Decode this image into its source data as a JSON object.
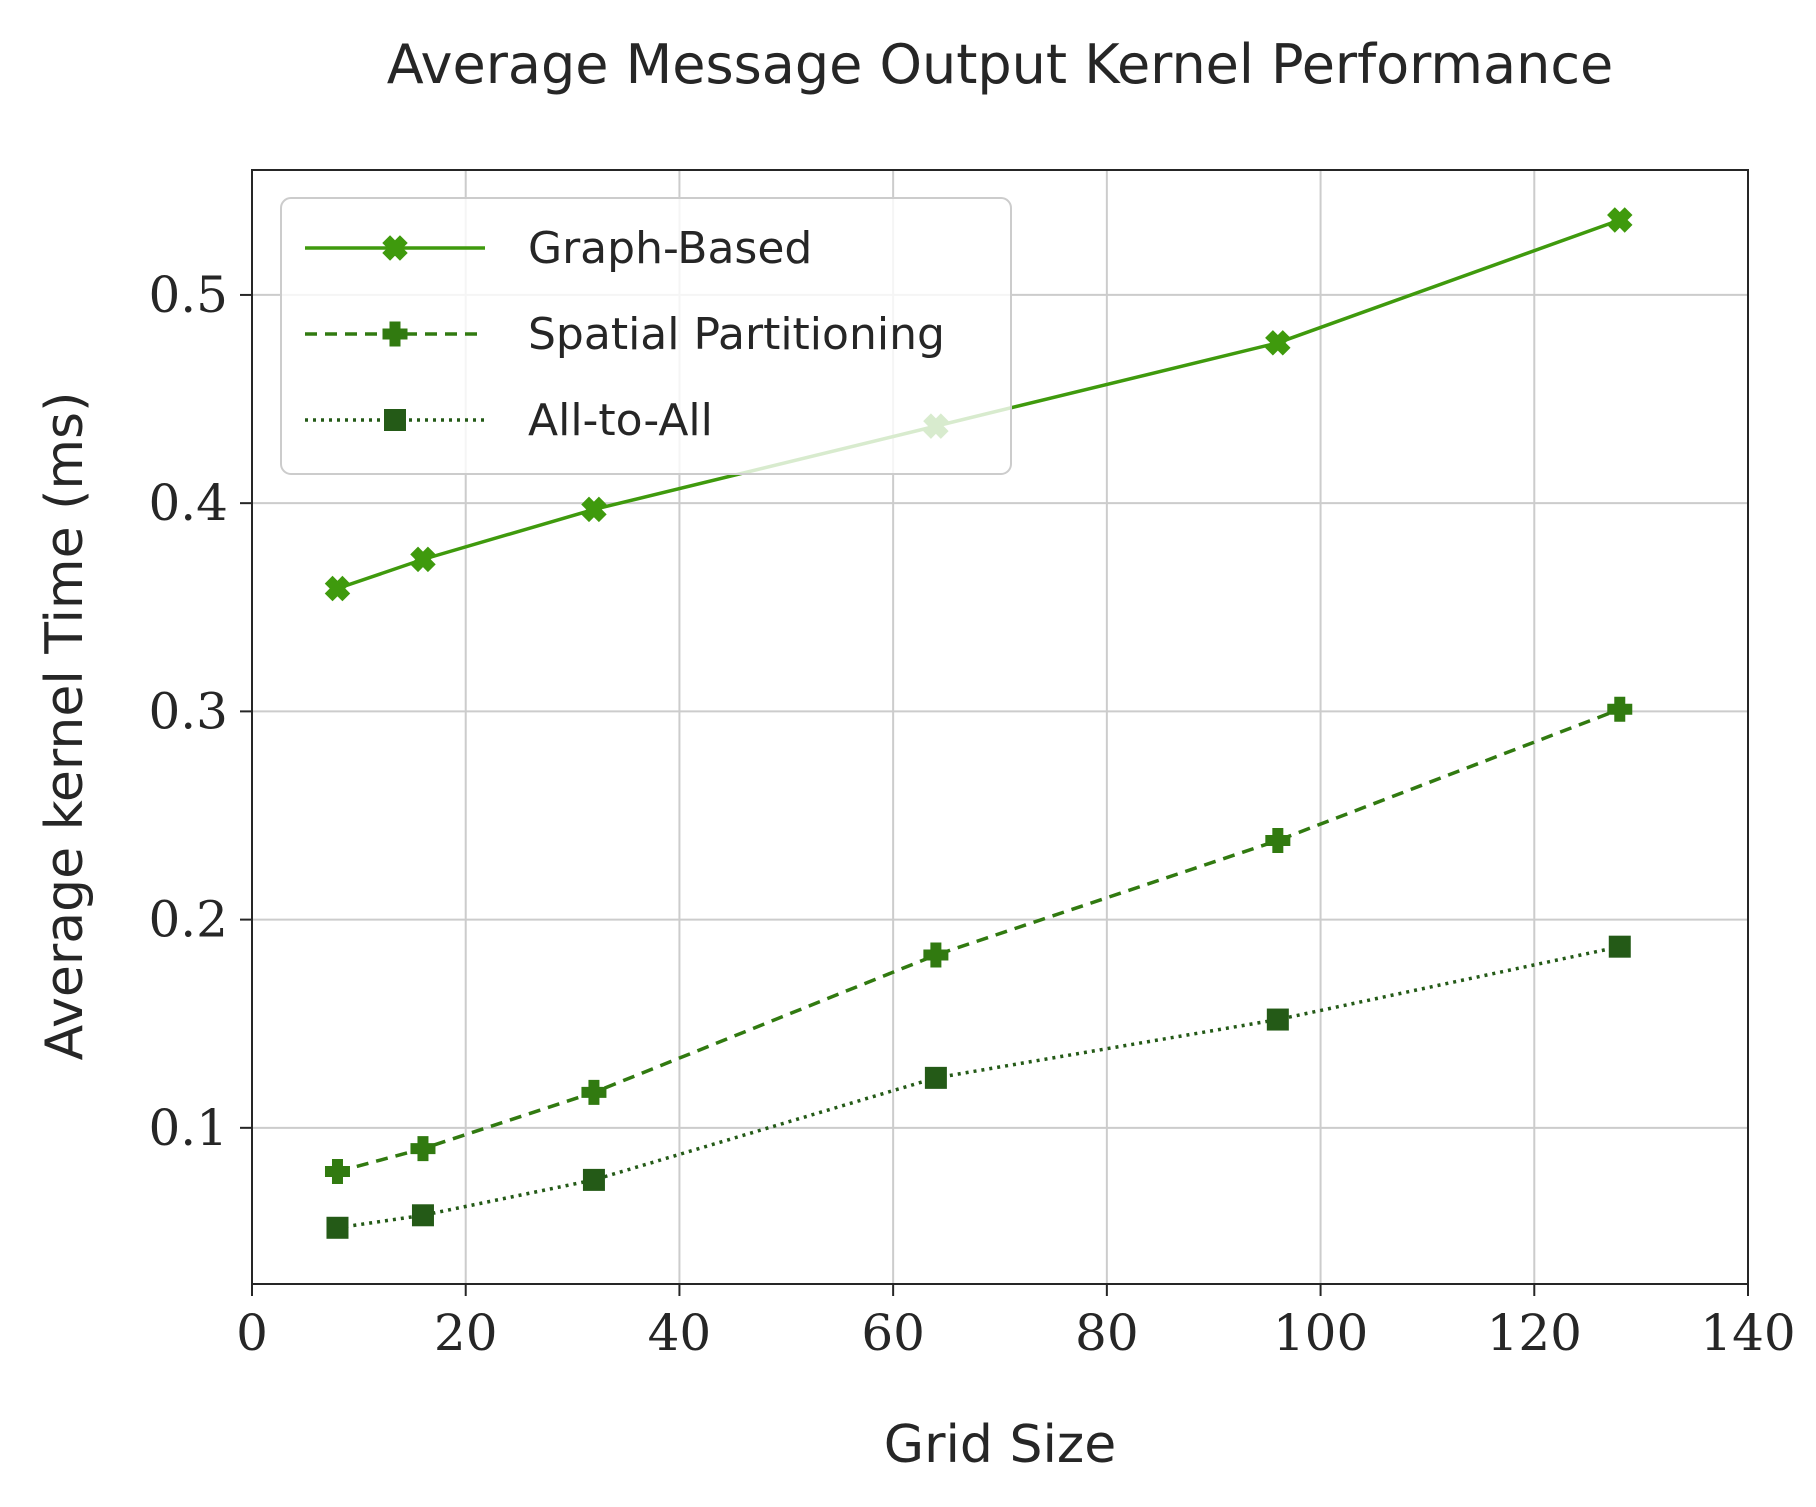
{
  "chart_data": {
    "type": "line",
    "title": "Average Message Output Kernel Performance",
    "xlabel": "Grid Size",
    "ylabel": "Average kernel Time (ms)",
    "xlim": [
      0,
      140
    ],
    "ylim": [
      0.025,
      0.56
    ],
    "xticks": [
      0,
      20,
      40,
      60,
      80,
      100,
      120,
      140
    ],
    "yticks": [
      0.1,
      0.2,
      0.3,
      0.4,
      0.5
    ],
    "xtick_labels": [
      "0",
      "20",
      "40",
      "60",
      "80",
      "100",
      "120",
      "140"
    ],
    "ytick_labels": [
      "0.1",
      "0.2",
      "0.3",
      "0.4",
      "0.5"
    ],
    "grid": true,
    "legend_position": "top-left",
    "x": [
      8,
      16,
      32,
      64,
      96,
      128
    ],
    "series": [
      {
        "name": "Graph-Based",
        "values": [
          0.359,
          0.373,
          0.397,
          0.437,
          0.477,
          0.536
        ],
        "color": "#3f9a0d",
        "line_style": "solid",
        "marker": "x-filled"
      },
      {
        "name": "Spatial Partitioning",
        "values": [
          0.079,
          0.09,
          0.117,
          0.183,
          0.238,
          0.301
        ],
        "color": "#317a10",
        "line_style": "dashed",
        "marker": "plus-filled"
      },
      {
        "name": "All-to-All",
        "values": [
          0.052,
          0.058,
          0.075,
          0.124,
          0.152,
          0.187
        ],
        "color": "#245a17",
        "line_style": "dotted",
        "marker": "square"
      }
    ]
  }
}
